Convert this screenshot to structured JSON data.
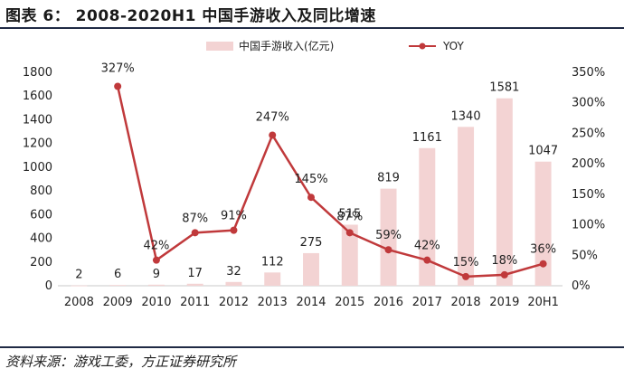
{
  "title": "图表 6： 2008-2020H1 中国手游收入及同比增速",
  "source": "资料来源：游戏工委，方正证券研究所",
  "chart_data": {
    "type": "bar+line",
    "categories": [
      "2008",
      "2009",
      "2010",
      "2011",
      "2012",
      "2013",
      "2014",
      "2015",
      "2016",
      "2017",
      "2018",
      "2019",
      "20H1"
    ],
    "bar_series": {
      "name": "中国手游收入(亿元)",
      "values": [
        2,
        6,
        9,
        17,
        32,
        112,
        275,
        515,
        819,
        1161,
        1340,
        1581,
        1047
      ],
      "color": "#f3d3d3"
    },
    "line_series": {
      "name": "YOY",
      "values": [
        null,
        327,
        42,
        87,
        91,
        247,
        145,
        87,
        59,
        42,
        15,
        18,
        36
      ],
      "labels": [
        "",
        "327%",
        "42%",
        "87%",
        "91%",
        "247%",
        "145%",
        "87%",
        "59%",
        "42%",
        "15%",
        "18%",
        "36%"
      ],
      "color": "#c0393b"
    },
    "left_axis": {
      "ylim": [
        0,
        1800
      ],
      "ticks": [
        "0",
        "200",
        "400",
        "600",
        "800",
        "1000",
        "1200",
        "1400",
        "1600",
        "1800"
      ]
    },
    "right_axis": {
      "ylim": [
        0,
        350
      ],
      "ticks": [
        "0%",
        "50%",
        "100%",
        "150%",
        "200%",
        "250%",
        "300%",
        "350%"
      ]
    },
    "legend_position": "top"
  }
}
